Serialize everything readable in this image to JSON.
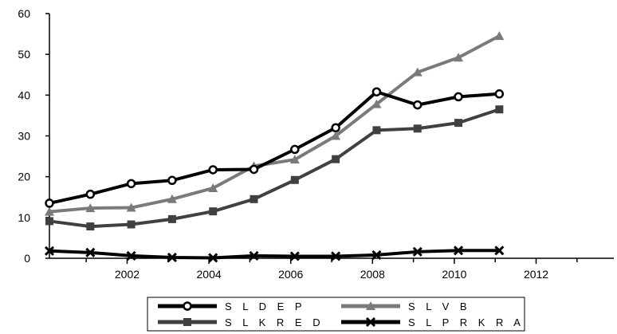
{
  "chart_data": {
    "type": "line",
    "x": [
      2000.1,
      2001.1,
      2002.1,
      2003.1,
      2004.1,
      2005.1,
      2006.1,
      2007.1,
      2008.1,
      2009.1,
      2010.1,
      2011.1
    ],
    "xlim": [
      2000.1,
      2013.9
    ],
    "xticks": [
      2002,
      2004,
      2006,
      2008,
      2010,
      2012
    ],
    "ylim": [
      0,
      60
    ],
    "yticks": [
      0,
      10,
      20,
      30,
      40,
      50,
      60
    ],
    "grid": false,
    "legend_position": "bottom",
    "series": [
      {
        "name": "SLDEP",
        "marker": "circle",
        "color": "#000000",
        "values": [
          13.5,
          15.7,
          18.3,
          19.1,
          21.7,
          21.8,
          26.7,
          32.0,
          40.8,
          37.6,
          39.6,
          40.3
        ]
      },
      {
        "name": "SLVB",
        "marker": "triangle",
        "color": "#7a7a7a",
        "values": [
          11.4,
          12.3,
          12.4,
          14.5,
          17.2,
          22.6,
          24.2,
          30.0,
          37.8,
          45.6,
          49.2,
          54.5
        ]
      },
      {
        "name": "SLKRED",
        "marker": "square",
        "color": "#404040",
        "values": [
          9.1,
          7.8,
          8.3,
          9.6,
          11.5,
          14.5,
          19.2,
          24.3,
          31.4,
          31.8,
          33.2,
          36.5
        ]
      },
      {
        "name": "SLPRKRA",
        "marker": "cross",
        "color": "#000000",
        "values": [
          1.8,
          1.4,
          0.6,
          0.2,
          0.1,
          0.6,
          0.5,
          0.5,
          0.8,
          1.6,
          1.9,
          1.9
        ]
      }
    ]
  },
  "legend": {
    "items": [
      {
        "label": "S L D E P"
      },
      {
        "label": "S L V B"
      },
      {
        "label": "S L K R E D"
      },
      {
        "label": "S L P R K R A"
      }
    ]
  }
}
